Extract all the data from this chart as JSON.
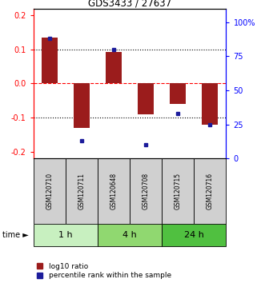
{
  "title": "GDS3433 / 27637",
  "samples": [
    "GSM120710",
    "GSM120711",
    "GSM120648",
    "GSM120708",
    "GSM120715",
    "GSM120716"
  ],
  "log10_ratio": [
    0.135,
    -0.13,
    0.093,
    -0.09,
    -0.06,
    -0.122
  ],
  "percentile_rank": [
    88,
    13,
    80,
    10,
    33,
    25
  ],
  "time_groups": [
    {
      "label": "1 h",
      "indices": [
        0,
        1
      ],
      "color": "#c8f0c0"
    },
    {
      "label": "4 h",
      "indices": [
        2,
        3
      ],
      "color": "#90d870"
    },
    {
      "label": "24 h",
      "indices": [
        4,
        5
      ],
      "color": "#50c040"
    }
  ],
  "bar_color": "#9B1C1C",
  "dot_color": "#1C1C9B",
  "ylim_left": [
    -0.22,
    0.22
  ],
  "ylim_right": [
    0,
    110
  ],
  "yticks_left": [
    -0.2,
    -0.1,
    0.0,
    0.1,
    0.2
  ],
  "yticks_right": [
    0,
    25,
    50,
    75,
    100
  ],
  "ytick_labels_right": [
    "0",
    "25",
    "50",
    "75",
    "100%"
  ],
  "hlines": [
    -0.1,
    0.0,
    0.1
  ],
  "hline_styles": [
    "dotted",
    "dashed",
    "dotted"
  ],
  "hline_colors": [
    "black",
    "red",
    "black"
  ],
  "background_color": "#ffffff",
  "legend_red_label": "log10 ratio",
  "legend_blue_label": "percentile rank within the sample",
  "time_label": "time ►",
  "bar_width": 0.5
}
